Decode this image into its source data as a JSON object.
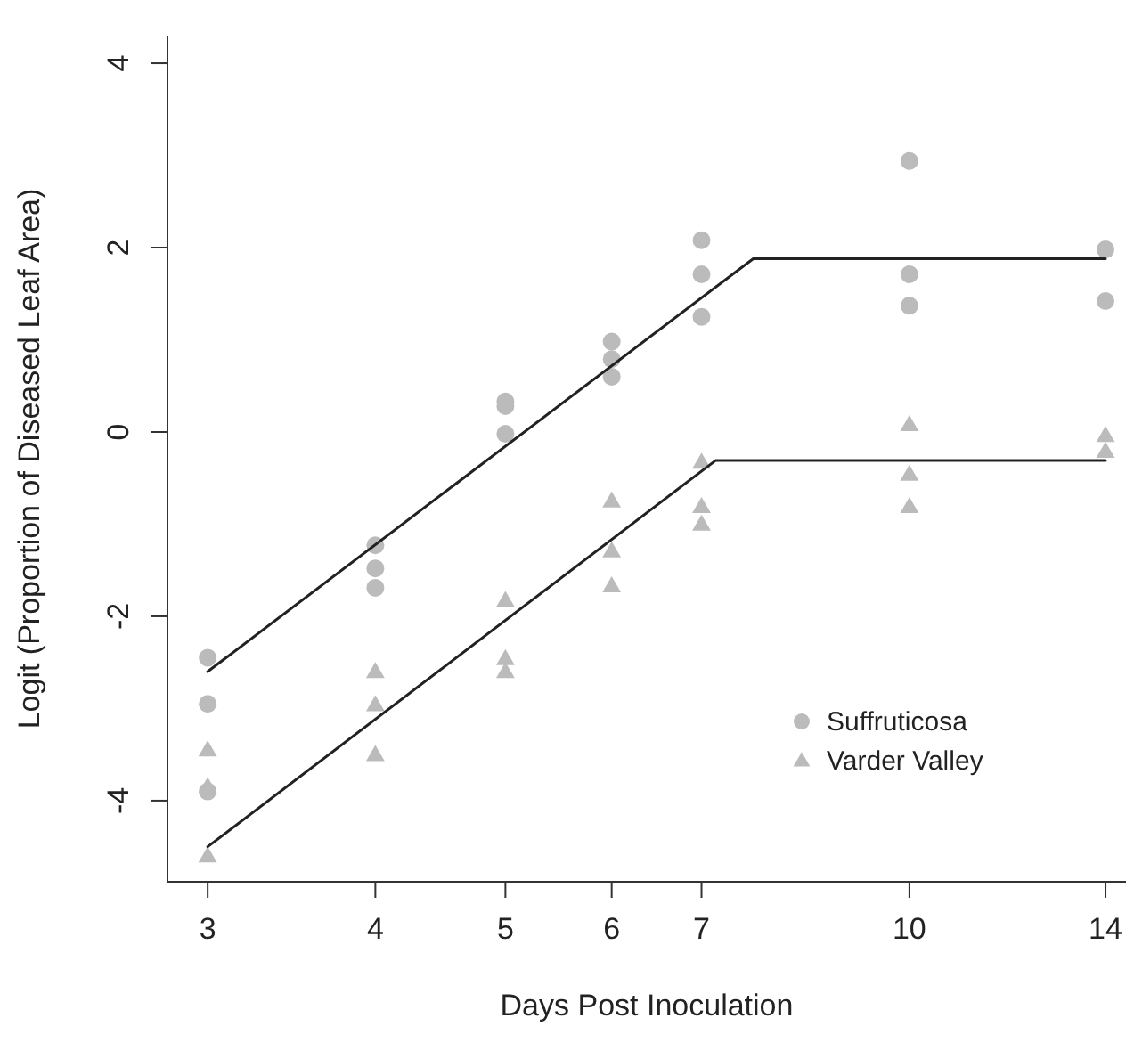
{
  "chart_data": {
    "type": "scatter",
    "xlabel": "Days Post Inoculation",
    "ylabel": "Logit (Proportion of Diseased Leaf Area)",
    "log": "x",
    "xlim": [
      2.8,
      14.5
    ],
    "xticks": [
      3,
      4,
      5,
      6,
      7,
      10,
      14
    ],
    "ylim": [
      -4.88,
      4.3
    ],
    "yticks": [
      -4,
      -2,
      0,
      2,
      4
    ],
    "grid": false,
    "legend": "bottom right",
    "series": [
      {
        "name": "Suffruticosa",
        "marker": "circle",
        "color": "#bbbbbb",
        "x": [
          3,
          3,
          3,
          4,
          4,
          4,
          5,
          5,
          5,
          6,
          6,
          6,
          7,
          7,
          7,
          10,
          10,
          10,
          14,
          14
        ],
        "values": [
          -2.45,
          -2.95,
          -3.9,
          -1.23,
          -1.48,
          -1.69,
          0.33,
          0.28,
          -0.02,
          0.98,
          0.79,
          0.6,
          2.08,
          1.71,
          1.25,
          2.94,
          1.71,
          1.37,
          1.98,
          1.42
        ]
      },
      {
        "name": "Varder Valley",
        "marker": "triangle",
        "color": "#bbbbbb",
        "x": [
          3,
          3,
          3,
          4,
          4,
          4,
          5,
          5,
          5,
          6,
          6,
          6,
          7,
          7,
          7,
          10,
          10,
          10,
          14,
          14
        ],
        "values": [
          -3.45,
          -3.85,
          -4.6,
          -2.6,
          -2.96,
          -3.5,
          -1.83,
          -2.46,
          -2.6,
          -0.75,
          -1.29,
          -1.67,
          -0.33,
          -0.81,
          -1.0,
          0.08,
          -0.46,
          -0.81,
          -0.04,
          -0.21
        ]
      },
      {
        "type": "line",
        "marker": "none",
        "line_style": "solid",
        "color": "#222222",
        "x": [
          3,
          7.65,
          14
        ],
        "values": [
          -2.6,
          1.88,
          1.88
        ]
      },
      {
        "type": "line",
        "marker": "none",
        "line_style": "solid",
        "color": "#222222",
        "x": [
          3,
          7.17,
          14
        ],
        "values": [
          -4.5,
          -0.31,
          -0.31
        ]
      }
    ]
  }
}
